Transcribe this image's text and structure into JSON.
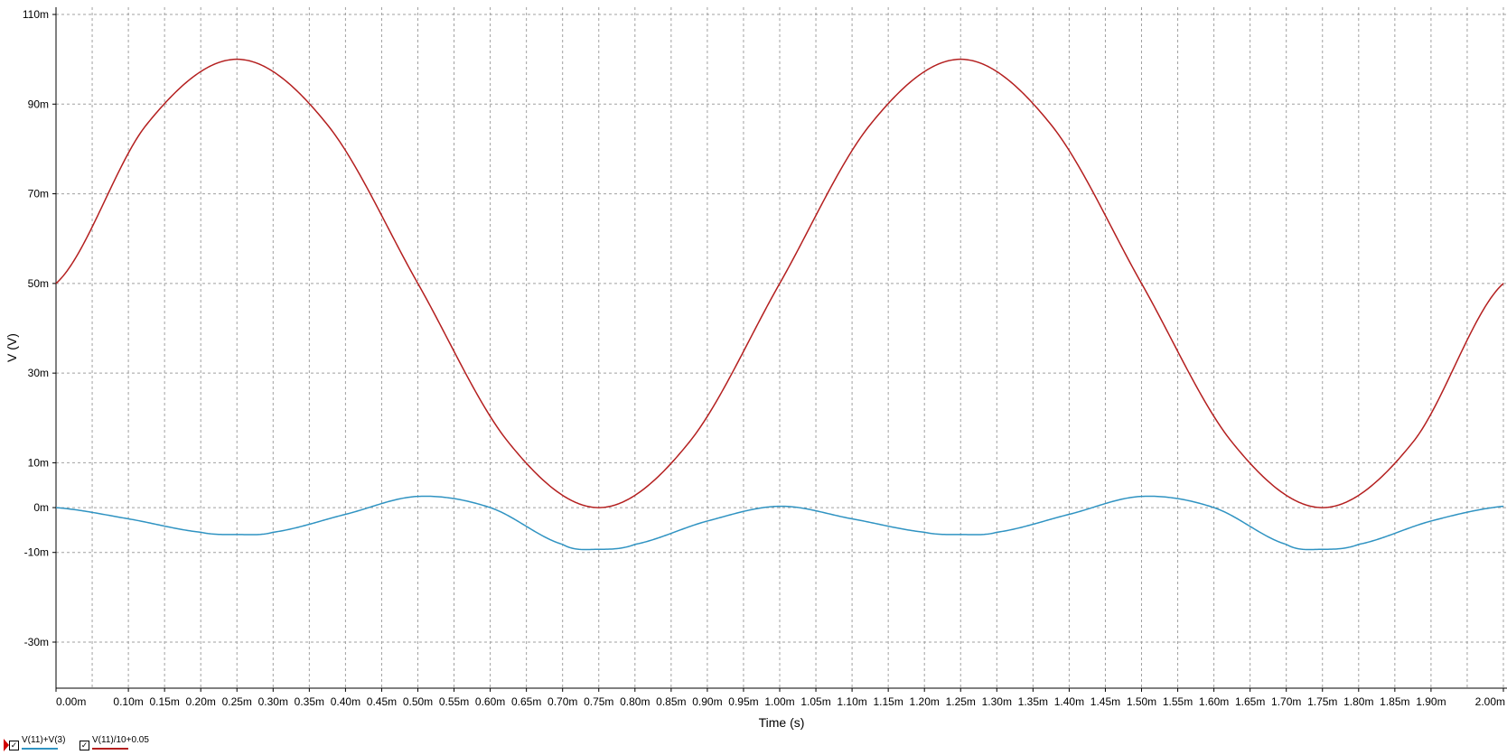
{
  "chart_data": {
    "type": "line",
    "xlabel": "Time (s)",
    "ylabel": "V (V)",
    "xlim": [
      0,
      0.002
    ],
    "ylim": [
      -0.03,
      0.11
    ],
    "grid": true,
    "x_ticks": [
      {
        "v": 0.0,
        "label": "0.00m"
      },
      {
        "v": 0.0001,
        "label": "0.10m"
      },
      {
        "v": 0.00015,
        "label": "0.15m"
      },
      {
        "v": 0.0002,
        "label": "0.20m"
      },
      {
        "v": 0.00025,
        "label": "0.25m"
      },
      {
        "v": 0.0003,
        "label": "0.30m"
      },
      {
        "v": 0.00035,
        "label": "0.35m"
      },
      {
        "v": 0.0004,
        "label": "0.40m"
      },
      {
        "v": 0.00045,
        "label": "0.45m"
      },
      {
        "v": 0.0005,
        "label": "0.50m"
      },
      {
        "v": 0.00055,
        "label": "0.55m"
      },
      {
        "v": 0.0006,
        "label": "0.60m"
      },
      {
        "v": 0.00065,
        "label": "0.65m"
      },
      {
        "v": 0.0007,
        "label": "0.70m"
      },
      {
        "v": 0.00075,
        "label": "0.75m"
      },
      {
        "v": 0.0008,
        "label": "0.80m"
      },
      {
        "v": 0.00085,
        "label": "0.85m"
      },
      {
        "v": 0.0009,
        "label": "0.90m"
      },
      {
        "v": 0.00095,
        "label": "0.95m"
      },
      {
        "v": 0.001,
        "label": "1.00m"
      },
      {
        "v": 0.00105,
        "label": "1.05m"
      },
      {
        "v": 0.0011,
        "label": "1.10m"
      },
      {
        "v": 0.00115,
        "label": "1.15m"
      },
      {
        "v": 0.0012,
        "label": "1.20m"
      },
      {
        "v": 0.00125,
        "label": "1.25m"
      },
      {
        "v": 0.0013,
        "label": "1.30m"
      },
      {
        "v": 0.00135,
        "label": "1.35m"
      },
      {
        "v": 0.0014,
        "label": "1.40m"
      },
      {
        "v": 0.00145,
        "label": "1.45m"
      },
      {
        "v": 0.0015,
        "label": "1.50m"
      },
      {
        "v": 0.00155,
        "label": "1.55m"
      },
      {
        "v": 0.0016,
        "label": "1.60m"
      },
      {
        "v": 0.00165,
        "label": "1.65m"
      },
      {
        "v": 0.0017,
        "label": "1.70m"
      },
      {
        "v": 0.00175,
        "label": "1.75m"
      },
      {
        "v": 0.0018,
        "label": "1.80m"
      },
      {
        "v": 0.00185,
        "label": "1.85m"
      },
      {
        "v": 0.0019,
        "label": "1.90m"
      },
      {
        "v": 0.002,
        "label": "2.00m"
      }
    ],
    "x_grid": [
      0,
      5e-05,
      0.0001,
      0.00015,
      0.0002,
      0.00025,
      0.0003,
      0.00035,
      0.0004,
      0.00045,
      0.0005,
      0.00055,
      0.0006,
      0.00065,
      0.0007,
      0.00075,
      0.0008,
      0.00085,
      0.0009,
      0.00095,
      0.001,
      0.00105,
      0.0011,
      0.00115,
      0.0012,
      0.00125,
      0.0013,
      0.00135,
      0.0014,
      0.00145,
      0.0015,
      0.00155,
      0.0016,
      0.00165,
      0.0017,
      0.00175,
      0.0018,
      0.00185,
      0.0019,
      0.00195,
      0.002
    ],
    "y_ticks": [
      {
        "v": 0.11,
        "label": "110m"
      },
      {
        "v": 0.09,
        "label": "90m"
      },
      {
        "v": 0.07,
        "label": "70m"
      },
      {
        "v": 0.05,
        "label": "50m"
      },
      {
        "v": 0.03,
        "label": "30m"
      },
      {
        "v": 0.01,
        "label": "10m"
      },
      {
        "v": 0.0,
        "label": "0m"
      },
      {
        "v": -0.01,
        "label": "-10m"
      },
      {
        "v": -0.03,
        "label": "-30m"
      }
    ],
    "series": [
      {
        "name": "V(11)+V(3)",
        "color": "#2f93c2",
        "x": [
          0,
          0.0001,
          0.0002,
          0.00025,
          0.0003,
          0.0004,
          0.0005,
          0.0006,
          0.0007,
          0.00075,
          0.0008,
          0.0009,
          0.001,
          0.0011,
          0.0012,
          0.00125,
          0.0013,
          0.0014,
          0.0015,
          0.0016,
          0.0017,
          0.00175,
          0.0018,
          0.0019,
          0.002
        ],
        "y": [
          0,
          -0.0025,
          -0.0055,
          -0.006,
          -0.0055,
          -0.0015,
          0.0025,
          0.0,
          -0.0082,
          -0.0093,
          -0.0082,
          -0.003,
          0.0003,
          -0.0025,
          -0.0055,
          -0.006,
          -0.0055,
          -0.0015,
          0.0025,
          0.0,
          -0.0082,
          -0.0093,
          -0.0082,
          -0.003,
          0.0003
        ]
      },
      {
        "name": "V(11)/10+0.05",
        "color": "#b41f1f",
        "x": [
          0,
          0.000125,
          0.00025,
          0.000375,
          0.0005,
          0.000625,
          0.00075,
          0.000875,
          0.001,
          0.001125,
          0.00125,
          0.001375,
          0.0015,
          0.001625,
          0.00175,
          0.001875,
          0.002
        ],
        "y": [
          0.05,
          0.0854,
          0.1,
          0.0854,
          0.05,
          0.0146,
          0.0,
          0.0146,
          0.05,
          0.0854,
          0.1,
          0.0854,
          0.05,
          0.0146,
          0.0,
          0.0146,
          0.05
        ]
      }
    ]
  }
}
